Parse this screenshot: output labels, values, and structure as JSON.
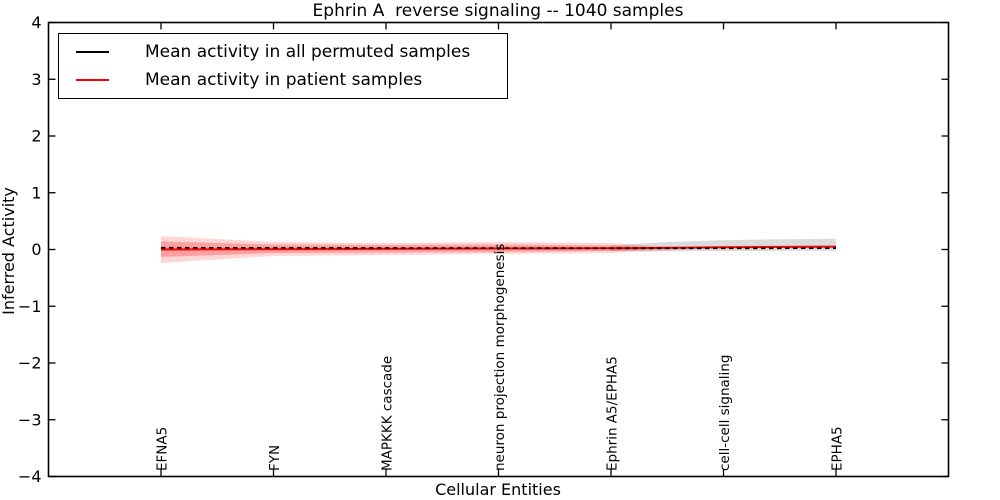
{
  "chart_data": {
    "type": "line",
    "title": "Ephrin A  reverse signaling -- 1040 samples",
    "xlabel": "Cellular Entities",
    "ylabel": "Inferred Activity",
    "xlim": [
      0,
      8
    ],
    "ylim": [
      -4,
      4
    ],
    "grid": false,
    "categories": [
      "EFNA5",
      "FYN",
      "MAPKKK cascade",
      "neuron projection morphogenesis",
      "Ephrin A5/EPHA5",
      "cell-cell signaling",
      "EPHA5"
    ],
    "x_tick_slots": [
      1,
      2,
      3,
      4,
      5,
      6,
      7
    ],
    "y_ticks": {
      "values": [
        4,
        3,
        2,
        1,
        0,
        -1,
        -2,
        -3,
        -4
      ],
      "labels": [
        "4",
        "3",
        "2",
        "1",
        "0",
        "−1",
        "−2",
        "−3",
        "−4"
      ]
    },
    "series": [
      {
        "name": "Mean activity in all permuted samples",
        "color": "#000000",
        "style": "dashed",
        "x": [
          1,
          2,
          3,
          4,
          5,
          6,
          7
        ],
        "values": [
          0.03,
          0.027,
          0.025,
          0.024,
          0.022,
          0.022,
          0.025
        ]
      },
      {
        "name": "Mean activity in patient samples",
        "color": "#ff0000",
        "style": "solid",
        "x": [
          1,
          2,
          3,
          4,
          5,
          6,
          7
        ],
        "values": [
          0.0,
          0.004,
          0.012,
          0.018,
          0.021,
          0.039,
          0.051
        ]
      }
    ],
    "bands": [
      {
        "name": "permuted-samples-std-band",
        "color": "#999999",
        "opacity": 0.35,
        "x": [
          5,
          5.5,
          6,
          6.5,
          7
        ],
        "upper": [
          0.075,
          0.13,
          0.165,
          0.18,
          0.19
        ],
        "lower": [
          -0.028,
          -0.028,
          -0.028,
          -0.025,
          -0.021
        ]
      },
      {
        "name": "patient-samples-std-band-outer",
        "color": "#ff0000",
        "opacity": 0.16,
        "x": [
          1,
          2,
          3,
          4,
          5,
          5.4,
          5.8
        ],
        "upper": [
          0.235,
          0.132,
          0.115,
          0.132,
          0.115,
          0.06,
          0.022
        ],
        "lower": [
          -0.237,
          -0.114,
          -0.097,
          -0.079,
          -0.062,
          -0.03,
          0.018
        ]
      },
      {
        "name": "patient-samples-std-band-inner",
        "color": "#ff0000",
        "opacity": 0.25,
        "x": [
          1,
          2,
          3,
          4,
          5,
          5.6
        ],
        "upper": [
          0.141,
          0.088,
          0.079,
          0.088,
          0.07,
          0.021
        ],
        "lower": [
          -0.132,
          -0.062,
          -0.053,
          -0.044,
          -0.026,
          0.019
        ]
      }
    ],
    "legend": {
      "position": "upper left",
      "items": [
        {
          "label": "Mean activity in all permuted samples",
          "color": "#000000"
        },
        {
          "label": "Mean activity in patient samples",
          "color": "#ff0000"
        }
      ]
    }
  }
}
